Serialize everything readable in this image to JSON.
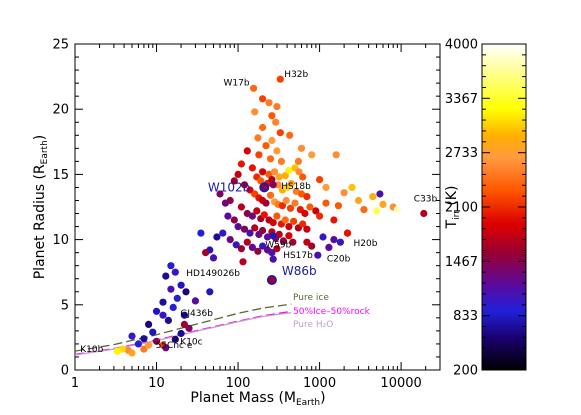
{
  "chart_data": {
    "type": "scatter",
    "title": "",
    "xlabel": "Planet Mass (M",
    "xlabel_sub": "Earth",
    "xlabel_close": ")",
    "ylabel": "Planet Radius (R",
    "ylabel_sub": "Earth",
    "ylabel_close": ")",
    "xscale": "log",
    "xlim": [
      1,
      30000
    ],
    "ylim": [
      0,
      25
    ],
    "xticks": [
      1,
      10,
      100,
      1000,
      10000
    ],
    "xtick_labels": [
      "1",
      "10",
      "100",
      "1000",
      "10000"
    ],
    "yticks": [
      0,
      5,
      10,
      15,
      20,
      25
    ],
    "ytick_labels": [
      "0",
      "5",
      "10",
      "15",
      "20",
      "25"
    ],
    "grid": false,
    "colorbar": {
      "label": "T",
      "label_sub": "irr",
      "label_close": " (K)",
      "range": [
        200,
        4000
      ],
      "ticks": [
        200,
        833,
        1467,
        2100,
        2733,
        3367,
        4000
      ],
      "tick_labels": [
        "200",
        "833",
        "1467",
        "2100",
        "2733",
        "3367",
        "4000"
      ]
    },
    "series": [
      {
        "name": "Pure ice",
        "color": "#556b2f",
        "style": "dashed",
        "points": [
          [
            1,
            1.45
          ],
          [
            3,
            1.95
          ],
          [
            10,
            2.7
          ],
          [
            30,
            3.5
          ],
          [
            100,
            4.35
          ],
          [
            200,
            4.75
          ],
          [
            450,
            5.05
          ]
        ]
      },
      {
        "name": "50%Ice–50%rock",
        "color": "#ff00ff",
        "style": "dashed",
        "points": [
          [
            1,
            1.2
          ],
          [
            3,
            1.65
          ],
          [
            10,
            2.3
          ],
          [
            30,
            3.0
          ],
          [
            100,
            3.75
          ],
          [
            200,
            4.15
          ],
          [
            450,
            4.5
          ]
        ]
      },
      {
        "name": "Pure H₂O",
        "color": "#c0a0c8",
        "style": "solid",
        "points": [
          [
            1,
            1.15
          ],
          [
            3,
            1.6
          ],
          [
            10,
            2.25
          ],
          [
            30,
            2.95
          ],
          [
            100,
            3.7
          ],
          [
            200,
            4.1
          ],
          [
            450,
            4.4
          ]
        ]
      }
    ],
    "labeled_planets": [
      {
        "name": "H32b",
        "mass": 330,
        "radius": 22.3,
        "temp": 2200
      },
      {
        "name": "W17b",
        "mass": 155,
        "radius": 21.6,
        "temp": 2400
      },
      {
        "name": "HS18b",
        "mass": 270,
        "radius": 14.2,
        "temp": 1400
      },
      {
        "name": "W102b",
        "mass": 210,
        "radius": 14.0,
        "temp": 1400,
        "emphasis": true
      },
      {
        "name": "C33b",
        "mass": 19000,
        "radius": 12.0,
        "temp": 1700
      },
      {
        "name": "H20b",
        "mass": 2200,
        "radius": 10.5,
        "temp": 2000
      },
      {
        "name": "W59b",
        "mass": 270,
        "radius": 10.3,
        "temp": 800
      },
      {
        "name": "HS17b",
        "mass": 270,
        "radius": 8.5,
        "temp": 1100
      },
      {
        "name": "C20b",
        "mass": 1300,
        "radius": 9.4,
        "temp": 1200
      },
      {
        "name": "HD149026b",
        "mass": 115,
        "radius": 8.3,
        "temp": 1700
      },
      {
        "name": "W86b",
        "mass": 260,
        "radius": 6.9,
        "temp": 1600,
        "emphasis": true
      },
      {
        "name": "GJ436b",
        "mass": 22,
        "radius": 4.2,
        "temp": 700
      },
      {
        "name": "K10c",
        "mass": 17,
        "radius": 2.35,
        "temp": 580
      },
      {
        "name": "55Cnc e",
        "mass": 8,
        "radius": 1.9,
        "temp": 2700
      },
      {
        "name": "K10b",
        "mass": 3.3,
        "radius": 1.45,
        "temp": 3200
      }
    ],
    "points": [
      [
        240,
        20.5,
        2500
      ],
      [
        260,
        19.5,
        2300
      ],
      [
        290,
        19.0,
        2550
      ],
      [
        200,
        18.6,
        2400
      ],
      [
        330,
        18.2,
        2200
      ],
      [
        175,
        17.8,
        2500
      ],
      [
        260,
        17.6,
        2700
      ],
      [
        220,
        17.2,
        2300
      ],
      [
        300,
        16.8,
        2700
      ],
      [
        180,
        16.5,
        2200
      ],
      [
        250,
        16.2,
        2400
      ],
      [
        340,
        16.0,
        2500
      ],
      [
        150,
        15.5,
        2000
      ],
      [
        200,
        15.2,
        1900
      ],
      [
        240,
        15.0,
        2300
      ],
      [
        280,
        15.2,
        2600
      ],
      [
        320,
        14.8,
        2800
      ],
      [
        380,
        14.9,
        2900
      ],
      [
        420,
        15.3,
        3200
      ],
      [
        500,
        15.5,
        3000
      ],
      [
        560,
        15.2,
        2600
      ],
      [
        620,
        14.8,
        2300
      ],
      [
        800,
        16.5,
        2700
      ],
      [
        170,
        14.8,
        2100
      ],
      [
        190,
        14.5,
        2300
      ],
      [
        230,
        14.3,
        2000
      ],
      [
        260,
        14.6,
        1700
      ],
      [
        310,
        14.2,
        2600
      ],
      [
        350,
        13.8,
        2900
      ],
      [
        400,
        14.0,
        3100
      ],
      [
        450,
        14.3,
        2800
      ],
      [
        520,
        13.7,
        2500
      ],
      [
        600,
        13.5,
        2300
      ],
      [
        700,
        13.3,
        2100
      ],
      [
        120,
        14.2,
        1600
      ],
      [
        140,
        13.8,
        1900
      ],
      [
        160,
        13.5,
        2200
      ],
      [
        180,
        13.2,
        2000
      ],
      [
        200,
        13.0,
        1800
      ],
      [
        220,
        12.8,
        1600
      ],
      [
        250,
        13.4,
        2400
      ],
      [
        280,
        12.9,
        2700
      ],
      [
        310,
        12.7,
        2500
      ],
      [
        350,
        12.6,
        2100
      ],
      [
        390,
        13.0,
        2600
      ],
      [
        440,
        12.4,
        2200
      ],
      [
        500,
        12.8,
        2500
      ],
      [
        580,
        12.3,
        2000
      ],
      [
        660,
        12.0,
        1900
      ],
      [
        760,
        12.5,
        2300
      ],
      [
        900,
        12.2,
        1800
      ],
      [
        1000,
        11.8,
        2100
      ],
      [
        110,
        12.5,
        1700
      ],
      [
        130,
        12.0,
        1500
      ],
      [
        150,
        11.8,
        1300
      ],
      [
        170,
        12.2,
        1800
      ],
      [
        190,
        11.6,
        1600
      ],
      [
        210,
        11.9,
        2000
      ],
      [
        240,
        11.5,
        1700
      ],
      [
        270,
        11.3,
        1900
      ],
      [
        300,
        11.8,
        2300
      ],
      [
        340,
        11.2,
        2000
      ],
      [
        380,
        11.5,
        2400
      ],
      [
        420,
        11.0,
        1800
      ],
      [
        480,
        11.4,
        2200
      ],
      [
        550,
        10.9,
        1700
      ],
      [
        620,
        11.2,
        2100
      ],
      [
        700,
        10.8,
        1800
      ],
      [
        90,
        11.5,
        1500
      ],
      [
        100,
        11.0,
        1200
      ],
      [
        120,
        10.8,
        1400
      ],
      [
        140,
        10.5,
        1100
      ],
      [
        160,
        10.9,
        1700
      ],
      [
        180,
        10.4,
        1300
      ],
      [
        200,
        10.7,
        1500
      ],
      [
        230,
        10.2,
        1200
      ],
      [
        260,
        10.6,
        1800
      ],
      [
        290,
        10.1,
        1400
      ],
      [
        320,
        10.4,
        1700
      ],
      [
        360,
        9.9,
        1500
      ],
      [
        420,
        10.3,
        1900
      ],
      [
        470,
        9.8,
        1600
      ],
      [
        80,
        10.0,
        1300
      ],
      [
        95,
        9.6,
        1000
      ],
      [
        110,
        9.3,
        1600
      ],
      [
        130,
        9.8,
        1700
      ],
      [
        150,
        9.4,
        1200
      ],
      [
        175,
        9.1,
        1500
      ],
      [
        200,
        9.5,
        1000
      ],
      [
        230,
        9.2,
        1300
      ],
      [
        260,
        9.0,
        1100
      ],
      [
        300,
        9.3,
        1700
      ],
      [
        60,
        13.5,
        1400
      ],
      [
        70,
        12.8,
        1300
      ],
      [
        75,
        11.8,
        1200
      ],
      [
        65,
        10.5,
        1000
      ],
      [
        55,
        10.2,
        700
      ],
      [
        45,
        9.2,
        800
      ],
      [
        50,
        8.6,
        1100
      ],
      [
        35,
        10.5,
        900
      ],
      [
        40,
        9.0,
        1600
      ],
      [
        90,
        14.5,
        1600
      ],
      [
        100,
        15.0,
        1800
      ],
      [
        110,
        15.8,
        2000
      ],
      [
        130,
        16.8,
        1900
      ],
      [
        80,
        13.0,
        1500
      ],
      [
        1200,
        12.8,
        2300
      ],
      [
        1500,
        11.5,
        2000
      ],
      [
        1700,
        12.6,
        2300
      ],
      [
        2000,
        13.6,
        2600
      ],
      [
        2500,
        14.0,
        3000
      ],
      [
        3000,
        13.0,
        2800
      ],
      [
        3500,
        12.3,
        2400
      ],
      [
        4500,
        13.3,
        2900
      ],
      [
        6000,
        12.7,
        2800
      ],
      [
        8000,
        12.5,
        2600
      ],
      [
        5000,
        12.2,
        3500
      ],
      [
        1100,
        10.2,
        1000
      ],
      [
        1500,
        10.0,
        1200
      ],
      [
        2200,
        10.5,
        1600
      ],
      [
        700,
        9.8,
        1800
      ],
      [
        800,
        9.5,
        1600
      ],
      [
        950,
        8.8,
        1100
      ],
      [
        1800,
        9.8,
        1000
      ],
      [
        5500,
        13.5,
        1100
      ],
      [
        9000,
        12.3,
        3800
      ],
      [
        1600,
        16.5,
        2600
      ],
      [
        1000,
        14.6,
        2200
      ],
      [
        1200,
        14.0,
        2700
      ],
      [
        550,
        16.0,
        2500
      ],
      [
        600,
        17.0,
        2600
      ],
      [
        430,
        18.0,
        2400
      ],
      [
        160,
        19.8,
        2600
      ],
      [
        300,
        20.2,
        2500
      ],
      [
        200,
        20.8,
        2200
      ],
      [
        15,
        8.0,
        900
      ],
      [
        13,
        7.2,
        700
      ],
      [
        17,
        7.5,
        1000
      ],
      [
        20,
        6.5,
        800
      ],
      [
        15,
        6.2,
        1100
      ],
      [
        23,
        6.0,
        600
      ],
      [
        18,
        5.5,
        900
      ],
      [
        12,
        5.2,
        700
      ],
      [
        30,
        5.3,
        1200
      ],
      [
        45,
        6.0,
        800
      ],
      [
        10,
        4.5,
        800
      ],
      [
        12,
        4.2,
        1000
      ],
      [
        14,
        3.8,
        700
      ],
      [
        16,
        4.8,
        900
      ],
      [
        22,
        3.5,
        1600
      ],
      [
        25,
        3.2,
        1400
      ],
      [
        20,
        2.8,
        700
      ],
      [
        8,
        3.5,
        600
      ],
      [
        9,
        2.9,
        800
      ],
      [
        7,
        2.4,
        700
      ],
      [
        6,
        2.0,
        900
      ],
      [
        5,
        2.6,
        1000
      ],
      [
        10,
        2.2,
        1500
      ],
      [
        12,
        1.9,
        2200
      ],
      [
        4.5,
        1.5,
        2600
      ],
      [
        3.8,
        1.6,
        3100
      ],
      [
        5,
        1.3,
        2800
      ],
      [
        7,
        1.6,
        2500
      ],
      [
        13,
        1.7,
        1300
      ]
    ]
  }
}
